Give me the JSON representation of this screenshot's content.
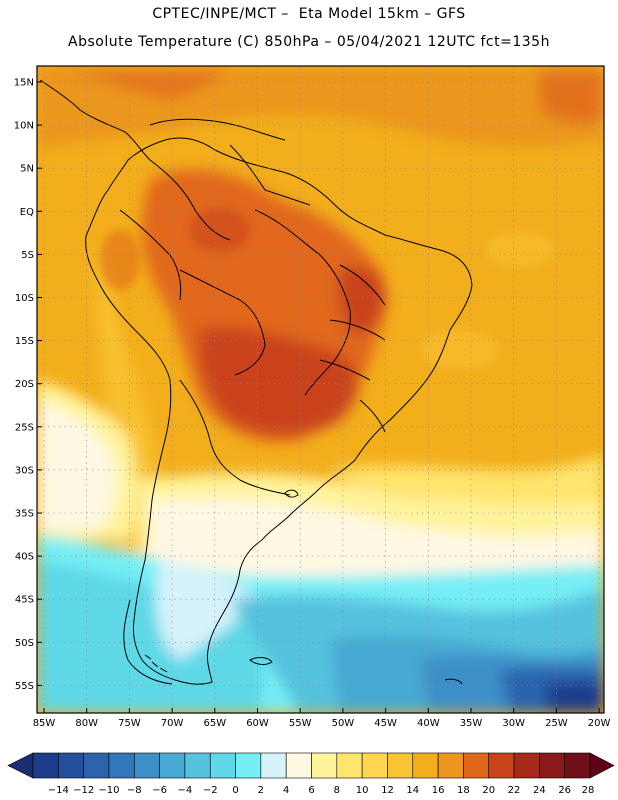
{
  "header": {
    "line1": "CPTEC/INPE/MCT –  Eta Model 15km – GFS",
    "line2": "Absolute Temperature (C) 850hPa – 05/04/2021 12UTC fct=135h"
  },
  "map": {
    "lat_labels": [
      "15N",
      "10N",
      "5N",
      "EQ",
      "5S",
      "10S",
      "15S",
      "20S",
      "25S",
      "30S",
      "35S",
      "40S",
      "45S",
      "50S",
      "55S"
    ],
    "lon_labels": [
      "85W",
      "80W",
      "75W",
      "70W",
      "65W",
      "60W",
      "55W",
      "50W",
      "45W",
      "40W",
      "35W",
      "30W",
      "25W",
      "20W"
    ]
  },
  "colorbar": {
    "labels": [
      "−14",
      "−12",
      "−10",
      "−8",
      "−6",
      "−4",
      "−2",
      "0",
      "2",
      "4",
      "6",
      "8",
      "10",
      "12",
      "14",
      "16",
      "18",
      "20",
      "22",
      "24",
      "26",
      "28"
    ],
    "colors": [
      "#1d3c8c",
      "#244f9d",
      "#2c63ad",
      "#3377bb",
      "#3d8fc8",
      "#47a9d4",
      "#55c2de",
      "#5fd8e8",
      "#76eef5",
      "#d6f3fb",
      "#fff8e3",
      "#fff39b",
      "#ffe46d",
      "#ffd64d",
      "#f9c432",
      "#f3ae1c",
      "#eb961c",
      "#e1681a",
      "#c9431a",
      "#a7291a",
      "#891a1a",
      "#6e0f1a"
    ],
    "low_arrow_color": "#1c2e72",
    "high_arrow_color": "#60001a"
  }
}
